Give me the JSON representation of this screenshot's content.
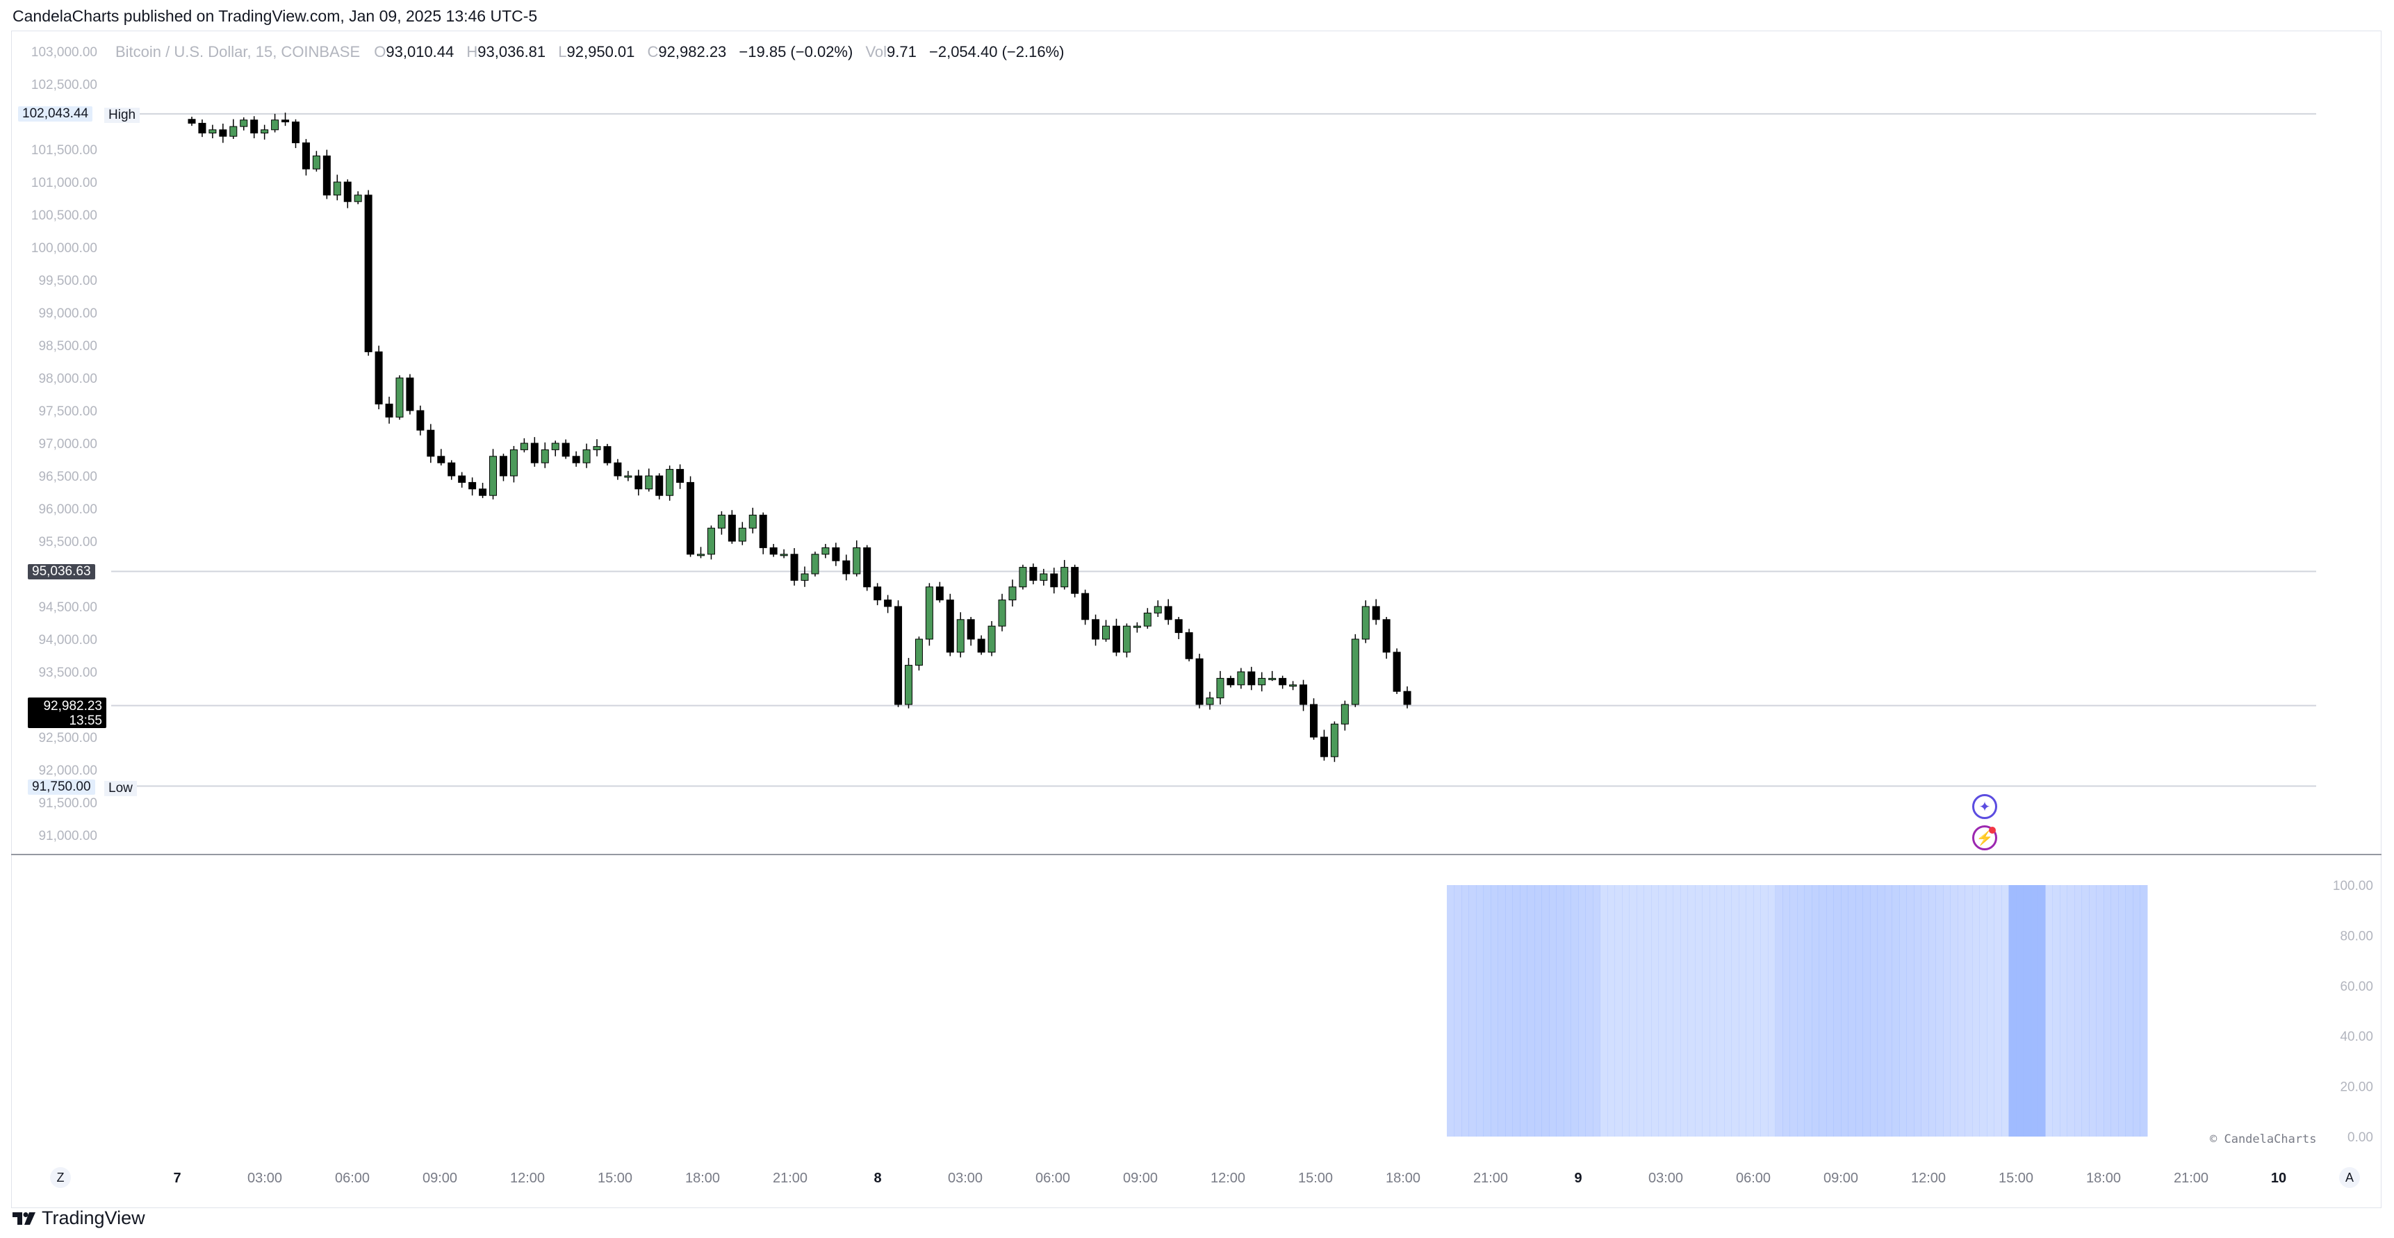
{
  "header": {
    "published_line": "CandelaCharts published on TradingView.com, Jan 09, 2025 13:46 UTC-5"
  },
  "legend": {
    "symbol": "Bitcoin / U.S. Dollar, 15, COINBASE",
    "o_label": "O",
    "o_value": "93,010.44",
    "h_label": "H",
    "h_value": "93,036.81",
    "l_label": "L",
    "l_value": "92,950.01",
    "c_label": "C",
    "c_value": "92,982.23",
    "change": "−19.85 (−0.02%)",
    "vol_label": "Vol",
    "vol_value": "9.71",
    "vol_change": "−2,054.40 (−2.16%)"
  },
  "price_scale": {
    "ticks": [
      "103,000.00",
      "102,500.00",
      "101,500.00",
      "101,000.00",
      "100,500.00",
      "100,000.00",
      "99,500.00",
      "99,000.00",
      "98,500.00",
      "98,000.00",
      "97,500.00",
      "97,000.00",
      "96,500.00",
      "96,000.00",
      "95,500.00",
      "94,500.00",
      "94,000.00",
      "93,500.00",
      "92,500.00",
      "92,000.00",
      "91,500.00",
      "91,000.00"
    ],
    "high_tag": "102,043.44",
    "high_label": "High",
    "low_tag": "91,750.00",
    "low_label": "Low",
    "mid_tag": "95,036.63",
    "last_price_tag": "92,982.23",
    "countdown": "13:55"
  },
  "indicator_scale": {
    "ticks": [
      "100.00",
      "80.00",
      "60.00",
      "40.00",
      "20.00",
      "0.00"
    ]
  },
  "time_axis": {
    "labels": [
      "7",
      "03:00",
      "06:00",
      "09:00",
      "12:00",
      "15:00",
      "18:00",
      "21:00",
      "8",
      "03:00",
      "06:00",
      "09:00",
      "12:00",
      "15:00",
      "18:00",
      "21:00",
      "9",
      "03:00",
      "06:00",
      "09:00",
      "12:00",
      "15:00",
      "18:00",
      "21:00",
      "10"
    ]
  },
  "controls": {
    "z_button": "Z",
    "a_button": "A",
    "assist_icon": "sparkle-icon",
    "flash_icon": "lightning-icon"
  },
  "credit": "© CandelaCharts",
  "brand": "TradingView",
  "colors": {
    "up": "#4c9a5a",
    "down": "#000000",
    "grid_line": "#d1d4dc",
    "heat": "#9bb7ff"
  },
  "chart_data": {
    "type": "candlestick",
    "symbol": "Bitcoin / U.S. Dollar",
    "interval": "15",
    "exchange": "COINBASE",
    "ylim": [
      90800,
      103200
    ],
    "price_lines": [
      102043.44,
      95036.63,
      92982.23,
      91750.0
    ],
    "session_start": "Jan 7, 00:00",
    "bar_minutes": 15,
    "close_path": [
      101900,
      101750,
      101800,
      101700,
      101850,
      101950,
      101750,
      101800,
      101950,
      101920,
      101600,
      101200,
      101400,
      100800,
      101000,
      100700,
      100800,
      98400,
      97600,
      97400,
      98000,
      97500,
      97200,
      96800,
      96700,
      96500,
      96400,
      96300,
      96200,
      96800,
      96500,
      96900,
      97000,
      96700,
      96900,
      97000,
      96800,
      96700,
      96900,
      96950,
      96700,
      96500,
      96500,
      96300,
      96500,
      96200,
      96600,
      96400,
      95300,
      95300,
      95700,
      95900,
      95500,
      95700,
      95900,
      95400,
      95300,
      95300,
      94900,
      95000,
      95300,
      95400,
      95200,
      95000,
      95400,
      94800,
      94600,
      94500,
      93000,
      93600,
      94000,
      94800,
      94600,
      93800,
      94300,
      94000,
      93800,
      94200,
      94600,
      94800,
      95100,
      94900,
      95000,
      94800,
      95100,
      94700,
      94300,
      94000,
      94200,
      93800,
      94200,
      94200,
      94400,
      94500,
      94300,
      94100,
      93700,
      93000,
      93100,
      93400,
      93300,
      93500,
      93300,
      93400,
      93400,
      93300,
      93300,
      93000,
      92500,
      92200,
      92700,
      93000,
      94000,
      94500,
      94300,
      93800,
      93200,
      93000
    ],
    "volume_heat": {
      "ylim": [
        0,
        100
      ],
      "start": "Jan 8, 19:30",
      "end": "Jan 9, 19:30",
      "value": 100
    }
  }
}
